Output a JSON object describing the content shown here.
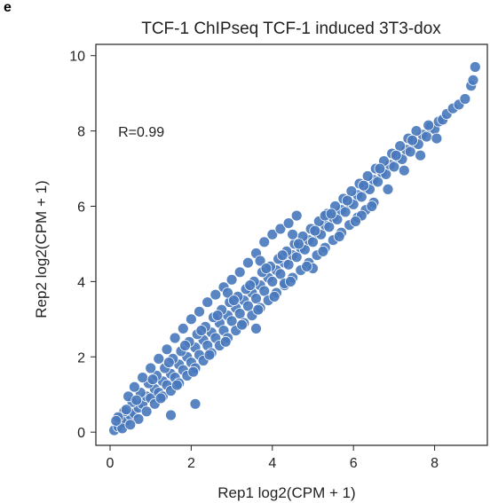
{
  "panel_label": "e",
  "chart_data": {
    "type": "scatter",
    "title": "TCF-1 ChIPseq TCF-1 induced 3T3-dox",
    "xlabel": "Rep1 log2(CPM + 1)",
    "ylabel": "Rep2 log2(CPM + 1)",
    "xlim": [
      -0.35,
      9.3
    ],
    "ylim": [
      -0.35,
      10.3
    ],
    "xticks": [
      0,
      2,
      4,
      6,
      8
    ],
    "yticks": [
      0,
      2,
      4,
      6,
      8,
      10
    ],
    "grid": false,
    "annotations": [
      {
        "text": "R=0.99",
        "x": 0.2,
        "y": 7.85
      }
    ],
    "point_color": "#4878bd",
    "point_edge_color": "#ffffff",
    "series": [
      {
        "points": [
          [
            0.1,
            0.05
          ],
          [
            0.2,
            0.15
          ],
          [
            0.3,
            0.25
          ],
          [
            0.25,
            0.35
          ],
          [
            0.4,
            0.3
          ],
          [
            0.5,
            0.45
          ],
          [
            0.35,
            0.55
          ],
          [
            0.6,
            0.5
          ],
          [
            0.7,
            0.65
          ],
          [
            0.55,
            0.8
          ],
          [
            0.8,
            0.75
          ],
          [
            0.9,
            0.95
          ],
          [
            0.75,
            1.05
          ],
          [
            1.0,
            0.9
          ],
          [
            1.1,
            1.15
          ],
          [
            0.95,
            1.3
          ],
          [
            1.2,
            1.05
          ],
          [
            1.3,
            1.35
          ],
          [
            1.15,
            1.5
          ],
          [
            1.4,
            1.25
          ],
          [
            1.5,
            1.55
          ],
          [
            1.35,
            1.7
          ],
          [
            1.6,
            1.45
          ],
          [
            1.7,
            1.8
          ],
          [
            1.55,
            1.95
          ],
          [
            1.8,
            1.65
          ],
          [
            1.9,
            2.0
          ],
          [
            1.75,
            2.15
          ],
          [
            2.0,
            1.85
          ],
          [
            2.1,
            2.25
          ],
          [
            1.95,
            2.4
          ],
          [
            2.2,
            2.05
          ],
          [
            2.3,
            2.45
          ],
          [
            2.15,
            2.6
          ],
          [
            2.4,
            2.3
          ],
          [
            2.5,
            2.65
          ],
          [
            2.35,
            2.8
          ],
          [
            2.6,
            2.5
          ],
          [
            2.7,
            2.9
          ],
          [
            2.55,
            3.05
          ],
          [
            2.8,
            2.7
          ],
          [
            2.9,
            3.1
          ],
          [
            2.75,
            3.25
          ],
          [
            3.0,
            2.95
          ],
          [
            3.1,
            3.3
          ],
          [
            2.95,
            3.45
          ],
          [
            3.2,
            3.15
          ],
          [
            3.3,
            3.5
          ],
          [
            3.15,
            3.6
          ],
          [
            3.4,
            3.35
          ],
          [
            3.5,
            3.7
          ],
          [
            3.35,
            3.8
          ],
          [
            3.6,
            3.55
          ],
          [
            3.7,
            3.9
          ],
          [
            3.55,
            4.0
          ],
          [
            3.8,
            3.75
          ],
          [
            3.9,
            4.1
          ],
          [
            3.75,
            4.25
          ],
          [
            4.0,
            4.0
          ],
          [
            4.1,
            4.3
          ],
          [
            3.95,
            4.4
          ],
          [
            4.2,
            4.2
          ],
          [
            4.3,
            4.5
          ],
          [
            4.15,
            4.6
          ],
          [
            4.4,
            4.45
          ],
          [
            4.5,
            4.7
          ],
          [
            4.35,
            4.8
          ],
          [
            4.6,
            4.65
          ],
          [
            4.7,
            4.9
          ],
          [
            4.55,
            5.0
          ],
          [
            4.8,
            4.85
          ],
          [
            4.9,
            5.1
          ],
          [
            4.75,
            5.2
          ],
          [
            5.0,
            5.05
          ],
          [
            5.1,
            5.3
          ],
          [
            4.95,
            5.4
          ],
          [
            5.2,
            5.25
          ],
          [
            5.3,
            5.5
          ],
          [
            5.15,
            5.6
          ],
          [
            5.4,
            5.45
          ],
          [
            5.5,
            5.7
          ],
          [
            5.35,
            5.8
          ],
          [
            5.6,
            5.65
          ],
          [
            5.7,
            5.9
          ],
          [
            5.55,
            6.0
          ],
          [
            5.8,
            5.85
          ],
          [
            5.9,
            6.1
          ],
          [
            5.75,
            6.2
          ],
          [
            6.0,
            6.05
          ],
          [
            6.1,
            6.3
          ],
          [
            5.95,
            6.4
          ],
          [
            6.2,
            6.25
          ],
          [
            6.3,
            6.5
          ],
          [
            6.15,
            6.6
          ],
          [
            6.4,
            6.45
          ],
          [
            6.5,
            6.7
          ],
          [
            6.35,
            6.8
          ],
          [
            6.6,
            6.65
          ],
          [
            6.7,
            6.9
          ],
          [
            6.55,
            7.0
          ],
          [
            6.8,
            6.85
          ],
          [
            6.9,
            7.1
          ],
          [
            6.75,
            7.2
          ],
          [
            7.0,
            7.05
          ],
          [
            7.1,
            7.3
          ],
          [
            6.95,
            7.4
          ],
          [
            7.2,
            7.25
          ],
          [
            7.3,
            7.5
          ],
          [
            7.15,
            7.6
          ],
          [
            7.4,
            7.45
          ],
          [
            7.5,
            7.7
          ],
          [
            7.35,
            7.8
          ],
          [
            7.6,
            7.65
          ],
          [
            7.7,
            7.9
          ],
          [
            7.55,
            8.0
          ],
          [
            7.8,
            7.85
          ],
          [
            7.9,
            8.1
          ],
          [
            8.0,
            8.05
          ],
          [
            8.1,
            8.25
          ],
          [
            8.2,
            8.3
          ],
          [
            8.3,
            8.45
          ],
          [
            8.45,
            8.6
          ],
          [
            8.6,
            8.7
          ],
          [
            8.75,
            8.85
          ],
          [
            8.9,
            9.2
          ],
          [
            8.95,
            9.35
          ],
          [
            9.0,
            9.7
          ],
          [
            0.45,
            0.95
          ],
          [
            0.6,
            1.2
          ],
          [
            0.8,
            1.45
          ],
          [
            1.0,
            1.7
          ],
          [
            1.2,
            1.95
          ],
          [
            1.4,
            2.2
          ],
          [
            1.6,
            2.5
          ],
          [
            1.8,
            2.75
          ],
          [
            2.0,
            3.0
          ],
          [
            2.2,
            3.2
          ],
          [
            2.4,
            3.45
          ],
          [
            2.6,
            3.65
          ],
          [
            2.8,
            3.85
          ],
          [
            3.0,
            4.05
          ],
          [
            3.2,
            4.25
          ],
          [
            3.4,
            4.5
          ],
          [
            3.6,
            4.75
          ],
          [
            3.8,
            5.05
          ],
          [
            4.0,
            5.25
          ],
          [
            4.2,
            5.4
          ],
          [
            4.4,
            5.55
          ],
          [
            4.6,
            5.75
          ],
          [
            0.7,
            0.35
          ],
          [
            0.9,
            0.55
          ],
          [
            1.1,
            0.75
          ],
          [
            1.3,
            0.95
          ],
          [
            1.5,
            1.1
          ],
          [
            1.7,
            1.3
          ],
          [
            1.9,
            1.5
          ],
          [
            2.1,
            1.7
          ],
          [
            2.3,
            1.9
          ],
          [
            2.5,
            2.1
          ],
          [
            2.7,
            2.3
          ],
          [
            2.9,
            2.5
          ],
          [
            3.1,
            2.7
          ],
          [
            3.3,
            2.9
          ],
          [
            3.5,
            3.1
          ],
          [
            3.7,
            3.3
          ],
          [
            3.9,
            3.5
          ],
          [
            4.1,
            3.7
          ],
          [
            4.3,
            3.9
          ],
          [
            4.5,
            4.1
          ],
          [
            4.7,
            4.3
          ],
          [
            4.9,
            4.5
          ],
          [
            5.1,
            4.7
          ],
          [
            5.3,
            4.9
          ],
          [
            5.5,
            5.1
          ],
          [
            5.7,
            5.3
          ],
          [
            5.9,
            5.5
          ],
          [
            6.1,
            5.7
          ],
          [
            6.3,
            5.9
          ],
          [
            6.5,
            6.1
          ],
          [
            2.1,
            0.75
          ],
          [
            1.5,
            0.45
          ],
          [
            3.6,
            2.75
          ],
          [
            4.3,
            3.95
          ],
          [
            5.0,
            4.35
          ],
          [
            6.2,
            5.75
          ],
          [
            2.9,
            3.7
          ],
          [
            3.7,
            4.55
          ],
          [
            4.5,
            5.25
          ],
          [
            5.3,
            5.75
          ],
          [
            0.2,
            0.4
          ],
          [
            0.3,
            0.1
          ],
          [
            0.15,
            0.3
          ],
          [
            0.5,
            0.2
          ],
          [
            0.4,
            0.6
          ],
          [
            0.65,
            0.85
          ],
          [
            1.05,
            1.4
          ],
          [
            1.25,
            0.9
          ],
          [
            1.45,
            1.85
          ],
          [
            1.65,
            1.25
          ],
          [
            1.85,
            2.3
          ],
          [
            2.05,
            1.6
          ],
          [
            2.25,
            2.7
          ],
          [
            2.45,
            2.05
          ],
          [
            2.65,
            3.1
          ],
          [
            2.85,
            2.4
          ],
          [
            3.05,
            3.5
          ],
          [
            3.25,
            2.85
          ],
          [
            3.45,
            3.9
          ],
          [
            3.65,
            3.25
          ],
          [
            3.85,
            4.35
          ],
          [
            4.05,
            3.6
          ],
          [
            4.25,
            4.7
          ],
          [
            4.45,
            4.0
          ],
          [
            4.65,
            5.0
          ],
          [
            4.85,
            4.4
          ],
          [
            5.05,
            5.35
          ],
          [
            5.25,
            4.8
          ],
          [
            5.45,
            5.8
          ],
          [
            5.65,
            5.2
          ],
          [
            5.85,
            6.15
          ],
          [
            6.05,
            5.6
          ],
          [
            6.25,
            6.55
          ],
          [
            6.45,
            6.0
          ],
          [
            6.65,
            7.0
          ],
          [
            6.85,
            6.45
          ],
          [
            7.05,
            7.35
          ],
          [
            7.25,
            6.95
          ],
          [
            7.45,
            7.75
          ],
          [
            7.65,
            7.35
          ],
          [
            7.85,
            8.15
          ],
          [
            8.05,
            7.8
          ]
        ]
      }
    ]
  }
}
